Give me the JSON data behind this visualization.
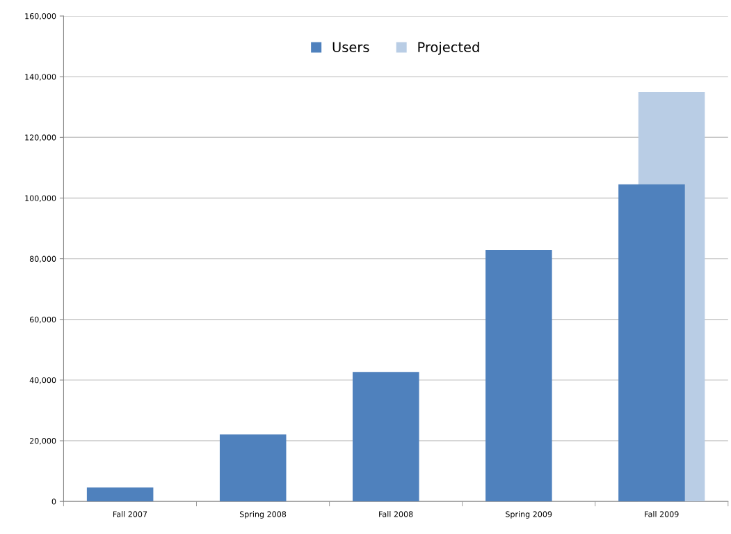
{
  "chart_data": {
    "type": "bar",
    "categories": [
      "Fall 2007",
      "Spring 2008",
      "Fall 2008",
      "Spring 2009",
      "Fall 2009"
    ],
    "series": [
      {
        "name": "Users",
        "color": "#4f81bd",
        "values": [
          4600,
          22100,
          42700,
          82900,
          104500
        ]
      },
      {
        "name": "Projected",
        "color": "#b9cde5",
        "values": [
          null,
          null,
          null,
          null,
          135000
        ]
      }
    ],
    "ylim": [
      0,
      160000
    ],
    "yticks": [
      {
        "value": 0,
        "label": "0"
      },
      {
        "value": 20000,
        "label": "20,000"
      },
      {
        "value": 40000,
        "label": "40,000"
      },
      {
        "value": 60000,
        "label": "60,000"
      },
      {
        "value": 80000,
        "label": "80,000"
      },
      {
        "value": 100000,
        "label": "100,000"
      },
      {
        "value": 120000,
        "label": "120,000"
      },
      {
        "value": 140000,
        "label": "140,000"
      },
      {
        "value": 160000,
        "label": "160,000"
      }
    ],
    "grid": "y",
    "legend": "top"
  }
}
